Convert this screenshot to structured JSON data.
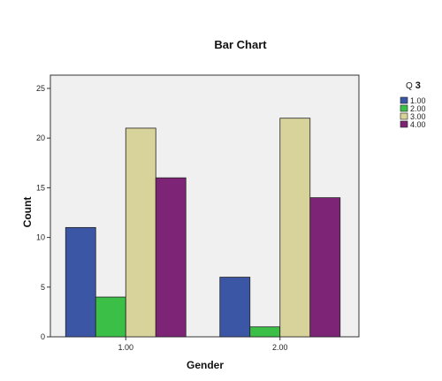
{
  "chart_data": {
    "type": "bar",
    "title": "Bar Chart",
    "xlabel": "Gender",
    "ylabel": "Count",
    "categories": [
      "1.00",
      "2.00"
    ],
    "ylim": [
      0,
      25
    ],
    "yticks": [
      0,
      5,
      10,
      15,
      20,
      25
    ],
    "grid": false,
    "legend": {
      "title_prefix": "Q",
      "title_suffix": "3",
      "position": "right"
    },
    "series": [
      {
        "name": "1.00",
        "values": [
          11,
          6
        ],
        "color": "#3c56a6"
      },
      {
        "name": "2.00",
        "values": [
          4,
          1
        ],
        "color": "#3bbf47"
      },
      {
        "name": "3.00",
        "values": [
          21,
          22
        ],
        "color": "#d8d39a"
      },
      {
        "name": "4.00",
        "values": [
          16,
          14
        ],
        "color": "#7e2477"
      }
    ]
  },
  "colors": {
    "plot_background": "#f0f0f0",
    "axis": "#333333"
  }
}
